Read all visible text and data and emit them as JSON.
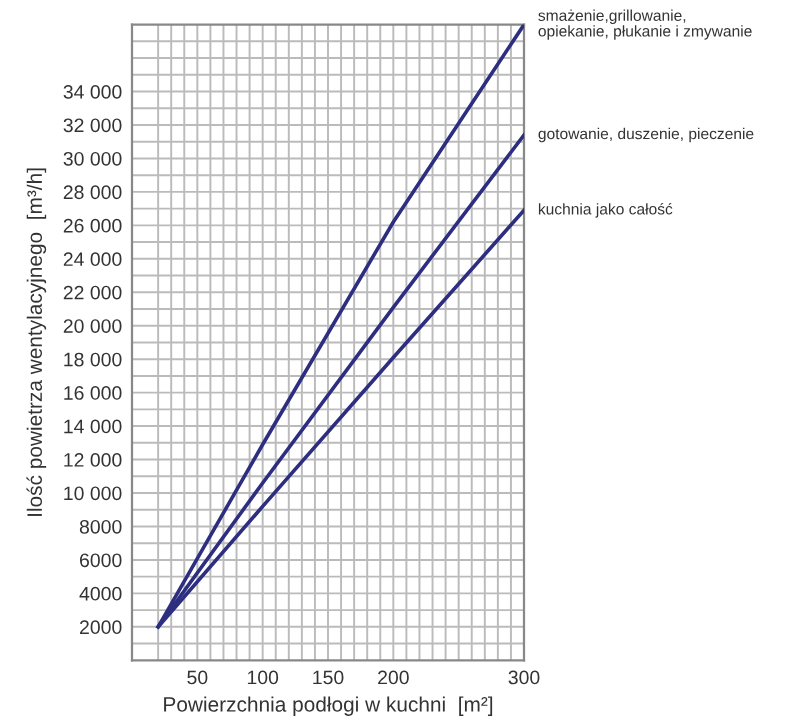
{
  "chart_data": {
    "type": "line",
    "xlabel": "Powierzchnia podłogi w kuchni  [m²]",
    "ylabel": "Ilość powietrza wentylacyjnego  [m³/h]",
    "xlim": [
      0,
      300
    ],
    "ylim": [
      0,
      38000
    ],
    "xticks": [
      {
        "value": 20,
        "label": null
      },
      {
        "value": 30,
        "label": null
      },
      {
        "value": 40,
        "label": null
      },
      50,
      {
        "value": 60,
        "label": null
      },
      {
        "value": 70,
        "label": null
      },
      {
        "value": 80,
        "label": null
      },
      {
        "value": 90,
        "label": null
      },
      100,
      {
        "value": 110,
        "label": null
      },
      {
        "value": 120,
        "label": null
      },
      {
        "value": 130,
        "label": null
      },
      {
        "value": 140,
        "label": null
      },
      150,
      {
        "value": 160,
        "label": null
      },
      {
        "value": 170,
        "label": null
      },
      {
        "value": 180,
        "label": null
      },
      {
        "value": 190,
        "label": null
      },
      200,
      {
        "value": 210,
        "label": null
      },
      {
        "value": 220,
        "label": null
      },
      {
        "value": 230,
        "label": null
      },
      {
        "value": 240,
        "label": null
      },
      {
        "value": 250,
        "label": null
      },
      {
        "value": 260,
        "label": null
      },
      {
        "value": 270,
        "label": null
      },
      {
        "value": 280,
        "label": null
      },
      {
        "value": 290,
        "label": null
      },
      300
    ],
    "yticks": [
      {
        "value": 1000,
        "label": null
      },
      2000,
      {
        "value": 3000,
        "label": null
      },
      4000,
      {
        "value": 5000,
        "label": null
      },
      6000,
      {
        "value": 7000,
        "label": null
      },
      8000,
      {
        "value": 9000,
        "label": null
      },
      {
        "value": 10000,
        "label": "10 000"
      },
      {
        "value": 11000,
        "label": null
      },
      {
        "value": 12000,
        "label": "12 000"
      },
      {
        "value": 13000,
        "label": null
      },
      {
        "value": 14000,
        "label": "14 000"
      },
      {
        "value": 15000,
        "label": null
      },
      {
        "value": 16000,
        "label": "16 000"
      },
      {
        "value": 17000,
        "label": null
      },
      {
        "value": 18000,
        "label": "18 000"
      },
      {
        "value": 19000,
        "label": null
      },
      {
        "value": 20000,
        "label": "20 000"
      },
      {
        "value": 21000,
        "label": null
      },
      {
        "value": 22000,
        "label": "22 000"
      },
      {
        "value": 23000,
        "label": null
      },
      {
        "value": 24000,
        "label": "24 000"
      },
      {
        "value": 25000,
        "label": null
      },
      {
        "value": 26000,
        "label": "26 000"
      },
      {
        "value": 27000,
        "label": null
      },
      {
        "value": 28000,
        "label": "28 000"
      },
      {
        "value": 29000,
        "label": null
      },
      {
        "value": 30000,
        "label": "30 000"
      },
      {
        "value": 31000,
        "label": null
      },
      {
        "value": 32000,
        "label": "32 000"
      },
      {
        "value": 33000,
        "label": null
      },
      {
        "value": 34000,
        "label": "34 000"
      },
      {
        "value": 35000,
        "label": null
      },
      {
        "value": 36000,
        "label": null
      },
      {
        "value": 37000,
        "label": null
      }
    ],
    "grid": true,
    "legend": false,
    "line_style": "solid",
    "marker": "none",
    "x": [
      20,
      100,
      200,
      300
    ],
    "series": [
      {
        "name": "smażenie,grillowanie,\nopiekanie, płukanie i zmywanie",
        "color": "#2e2e80",
        "values": [
          2000,
          12900,
          26200,
          38000
        ]
      },
      {
        "name": "gotowanie, duszenie, pieczenie",
        "color": "#2e2e80",
        "values": [
          2000,
          10600,
          21100,
          31400
        ]
      },
      {
        "name": "kuchnia jako całość",
        "color": "#2e2e80",
        "values": [
          2000,
          9200,
          18100,
          26900
        ]
      }
    ]
  }
}
